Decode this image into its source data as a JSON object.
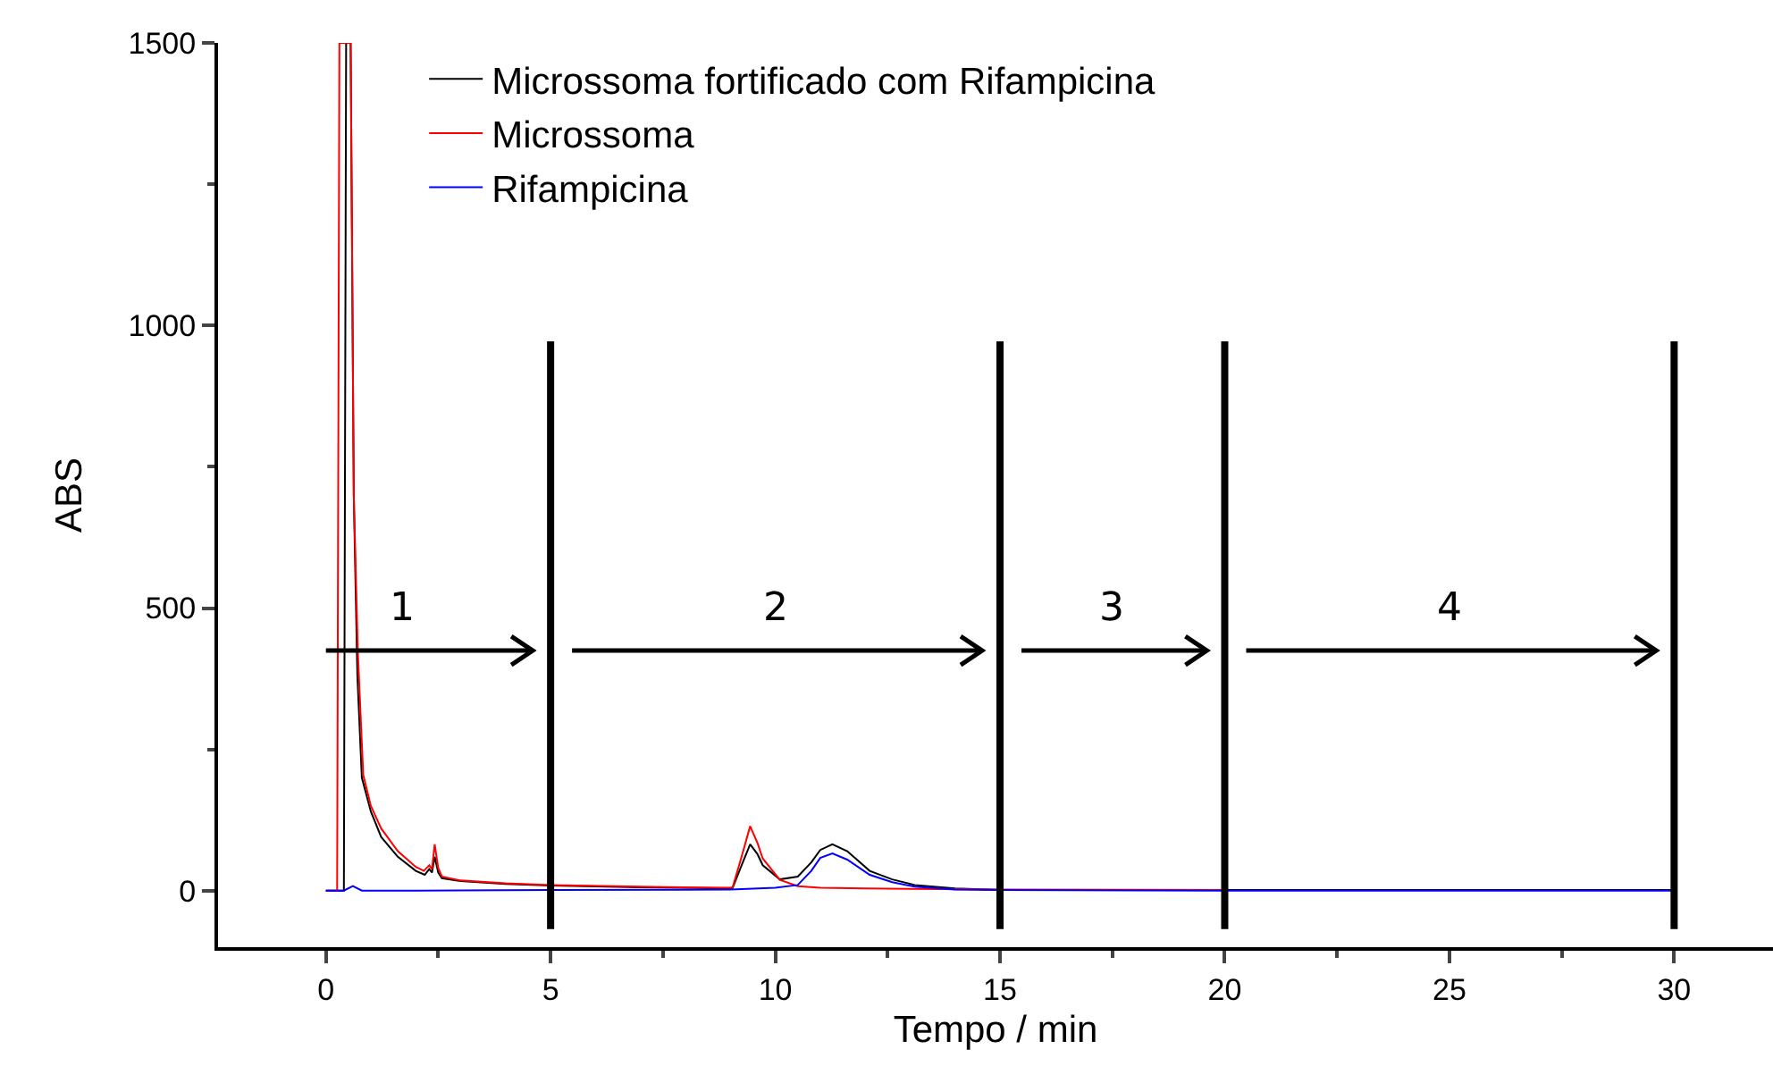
{
  "chart_data": {
    "type": "line",
    "xlabel": "Tempo / min",
    "ylabel": "ABS",
    "xlim": [
      -2.4,
      32.2
    ],
    "ylim": [
      -100,
      1500
    ],
    "xticks": [
      0,
      5,
      10,
      15,
      20,
      25,
      30
    ],
    "yticks": [
      0,
      500,
      1000,
      1500
    ],
    "grid": false,
    "legend": "top left",
    "marker": "none",
    "line_style": "solid",
    "series": [
      {
        "name": "Microssoma fortificado com Rifampicina",
        "color": "#000000",
        "x": [
          0,
          0.4,
          0.45,
          0.55,
          0.62,
          0.7,
          0.8,
          1.0,
          1.23,
          1.6,
          2.0,
          2.2,
          2.3,
          2.36,
          2.42,
          2.5,
          2.58,
          3,
          4,
          5,
          7,
          9,
          9.05,
          9.25,
          9.44,
          9.6,
          9.72,
          10.1,
          10.5,
          10.8,
          11.0,
          11.27,
          11.6,
          12.1,
          12.6,
          13.1,
          14,
          15,
          20,
          25,
          30
        ],
        "values": [
          0,
          0,
          1500,
          1500,
          700,
          380,
          200,
          140,
          95,
          60,
          35,
          28,
          38,
          32,
          60,
          32,
          22,
          17,
          12,
          9,
          6,
          4,
          5,
          45,
          82,
          65,
          45,
          20,
          25,
          50,
          72,
          82,
          70,
          35,
          20,
          10,
          4,
          1,
          1,
          1,
          1
        ]
      },
      {
        "name": "Microssoma",
        "color": "#ff0000",
        "x": [
          0,
          0.25,
          0.3,
          0.55,
          0.62,
          0.71,
          0.83,
          1.0,
          1.23,
          1.6,
          2.0,
          2.18,
          2.3,
          2.36,
          2.42,
          2.5,
          2.58,
          3,
          4,
          5,
          7,
          9,
          9.05,
          9.25,
          9.44,
          9.6,
          9.72,
          10.1,
          10.5,
          11,
          12,
          13,
          15,
          20
        ],
        "values": [
          0,
          0,
          1500,
          1500,
          700,
          424,
          205,
          150,
          110,
          70,
          42,
          35,
          45,
          38,
          82,
          40,
          25,
          18,
          13,
          10,
          7,
          5,
          6,
          60,
          114,
          85,
          57,
          19,
          8,
          5,
          4,
          3,
          2,
          1
        ]
      },
      {
        "name": "Rifampicina",
        "color": "#0000ff",
        "x": [
          0,
          0.4,
          0.6,
          0.8,
          2,
          5,
          9,
          10,
          10.5,
          10.8,
          11.0,
          11.27,
          11.6,
          12.1,
          12.6,
          13.1,
          14,
          15,
          20,
          25,
          30
        ],
        "values": [
          0,
          0,
          8,
          0,
          0,
          1,
          2,
          5,
          10,
          35,
          58,
          66,
          55,
          28,
          15,
          7,
          2,
          1,
          0,
          0,
          0
        ]
      }
    ],
    "ref_lines": [
      {
        "axis": "x",
        "value": 5,
        "color": "#000000"
      },
      {
        "axis": "x",
        "value": 15,
        "color": "#000000"
      },
      {
        "axis": "x",
        "value": 20,
        "color": "#000000"
      },
      {
        "axis": "x",
        "value": 30,
        "color": "#000000"
      }
    ],
    "annotations": [
      "1",
      "2",
      "3",
      "4"
    ]
  }
}
